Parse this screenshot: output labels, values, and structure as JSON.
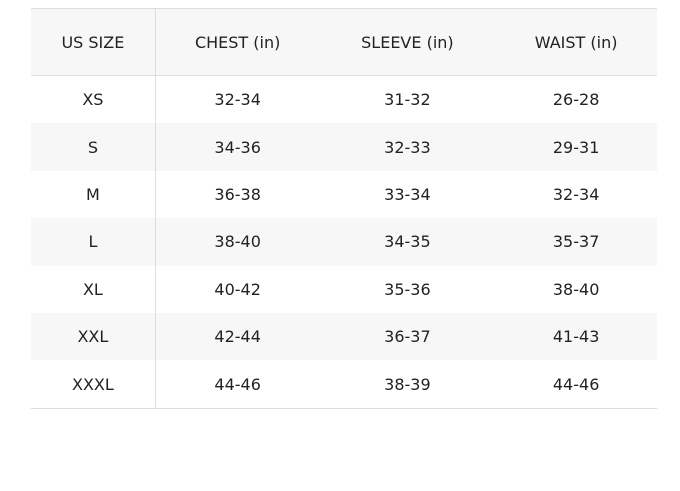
{
  "headers": [
    "US SIZE",
    "CHEST (in)",
    "SLEEVE (in)",
    "WAIST (in)"
  ],
  "rows": [
    [
      "XS",
      "32-34",
      "31-32",
      "26-28"
    ],
    [
      "S",
      "34-36",
      "32-33",
      "29-31"
    ],
    [
      "M",
      "36-38",
      "33-34",
      "32-34"
    ],
    [
      "L",
      "38-40",
      "34-35",
      "35-37"
    ],
    [
      "XL",
      "40-42",
      "35-36",
      "38-40"
    ],
    [
      "XXL",
      "42-44",
      "36-37",
      "41-43"
    ],
    [
      "XXXL",
      "44-46",
      "38-39",
      "44-46"
    ]
  ]
}
